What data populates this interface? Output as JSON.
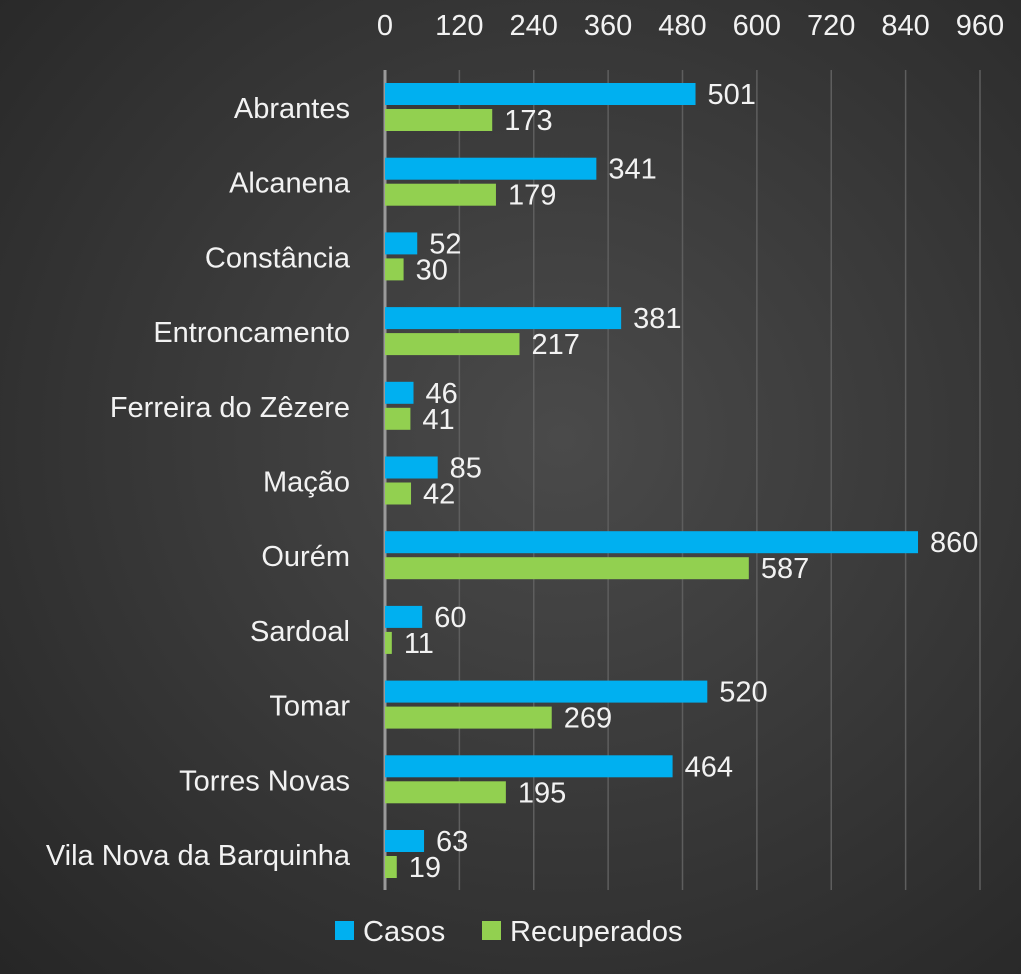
{
  "chart_data": {
    "type": "bar",
    "orientation": "horizontal",
    "title": "",
    "xlabel": "",
    "ylabel": "",
    "xlim": [
      0,
      960
    ],
    "x_ticks": [
      0,
      120,
      240,
      360,
      480,
      600,
      720,
      840,
      960
    ],
    "x_axis_position": "top",
    "grid": true,
    "legend_position": "bottom",
    "categories": [
      "Abrantes",
      "Alcanena",
      "Constância",
      "Entroncamento",
      "Ferreira do Zêzere",
      "Mação",
      "Ourém",
      "Sardoal",
      "Tomar",
      "Torres Novas",
      "Vila Nova da Barquinha"
    ],
    "series": [
      {
        "name": "Casos",
        "color": "#00b0f0",
        "values": [
          501,
          341,
          52,
          381,
          46,
          85,
          860,
          60,
          520,
          464,
          63
        ]
      },
      {
        "name": "Recuperados",
        "color": "#92d050",
        "values": [
          173,
          179,
          30,
          217,
          41,
          42,
          587,
          11,
          269,
          195,
          19
        ]
      }
    ]
  }
}
